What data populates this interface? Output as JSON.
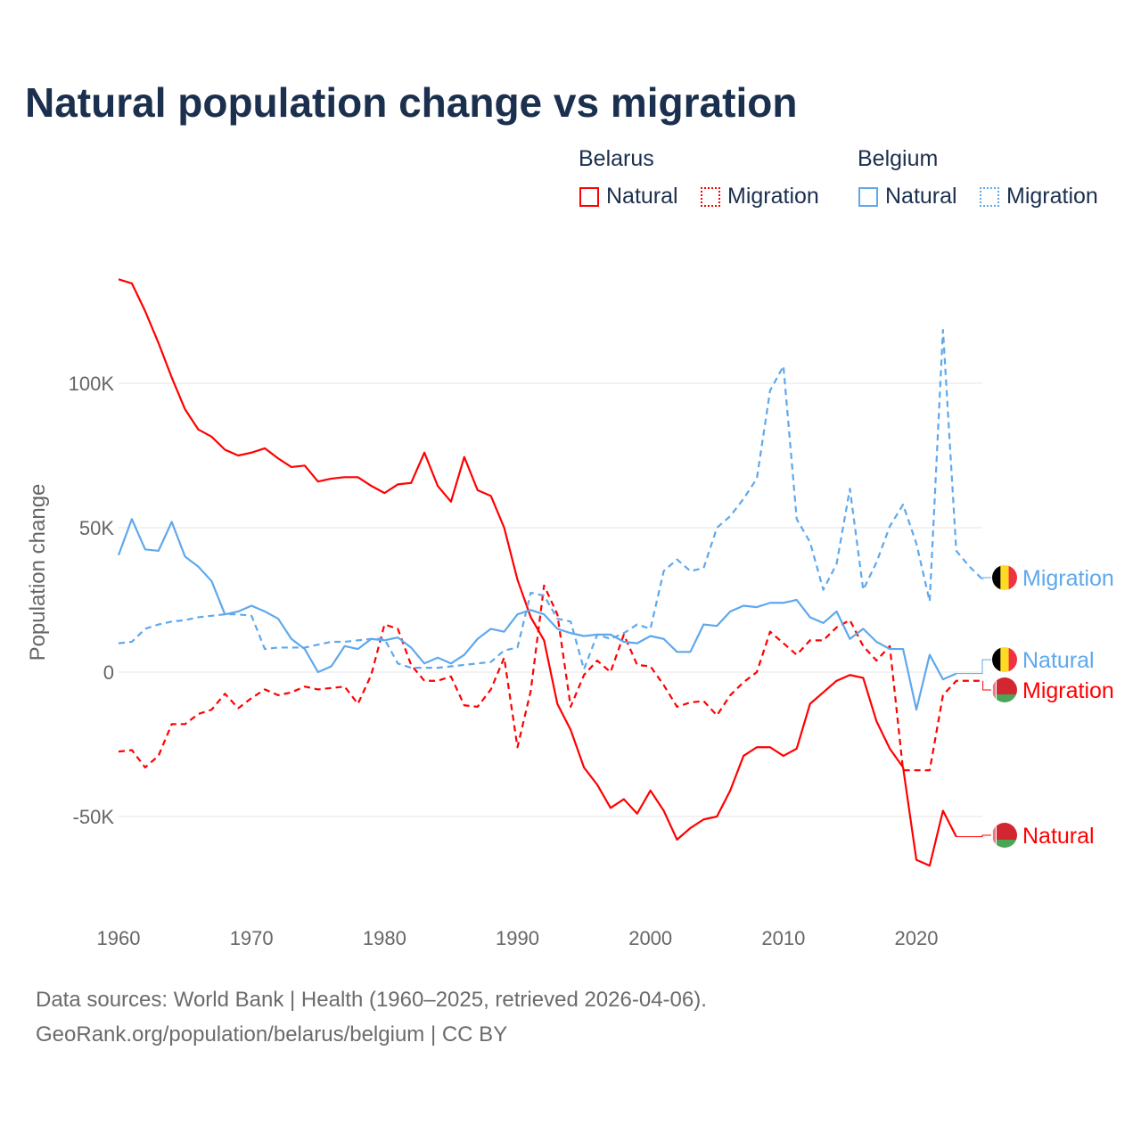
{
  "chart_data": {
    "type": "line",
    "title": "Natural population change vs migration",
    "xlabel": "",
    "ylabel": "Population change",
    "xlim": [
      1960,
      2025
    ],
    "ylim": [
      -80000,
      140000
    ],
    "grid": true,
    "x_ticks": [
      1960,
      1970,
      1980,
      1990,
      2000,
      2010,
      2020
    ],
    "x_tick_labels": [
      "1960",
      "1970",
      "1980",
      "1990",
      "2000",
      "2010",
      "2020"
    ],
    "y_ticks": [
      -50000,
      0,
      50000,
      100000
    ],
    "y_tick_labels": [
      "-50K",
      "0",
      "50K",
      "100K"
    ],
    "legend": {
      "placement": "top-right",
      "groups": [
        {
          "name": "Belarus",
          "items": [
            "Natural",
            "Migration"
          ]
        },
        {
          "name": "Belgium",
          "items": [
            "Natural",
            "Migration"
          ]
        }
      ]
    },
    "colors": {
      "Belarus": "#ff0000",
      "Belgium": "#5ea8ec"
    },
    "series": [
      {
        "country": "Belarus",
        "name": "Natural",
        "style": "solid",
        "end_label": "Natural",
        "start_year": 1960,
        "values": [
          136000,
          134600,
          125000,
          114000,
          102000,
          91000,
          84000,
          81500,
          77000,
          75000,
          76000,
          77500,
          74000,
          71000,
          71500,
          66000,
          67000,
          67500,
          67500,
          64500,
          62000,
          65000,
          65500,
          76000,
          64500,
          59000,
          74500,
          63000,
          61000,
          50000,
          32000,
          19000,
          11000,
          -11000,
          -20000,
          -33000,
          -39000,
          -47000,
          -44000,
          -49000,
          -41000,
          -48000,
          -58000,
          -54000,
          -51000,
          -50000,
          -41000,
          -29000,
          -26000,
          -26000,
          -29000,
          -26500,
          -11000,
          -7000,
          -3000,
          -1000,
          -2000,
          -17000,
          -26500,
          -33000,
          -65000,
          -67000,
          -48000,
          -57000
        ]
      },
      {
        "country": "Belarus",
        "name": "Migration",
        "style": "dashed",
        "end_label": "Migration",
        "start_year": 1960,
        "values": [
          -27500,
          -27000,
          -33000,
          -29000,
          -18000,
          -18000,
          -14500,
          -13000,
          -7500,
          -12500,
          -9000,
          -6000,
          -8000,
          -7000,
          -5000,
          -6000,
          -5500,
          -5000,
          -11000,
          -1000,
          16500,
          15000,
          2500,
          -3000,
          -3000,
          -1500,
          -11500,
          -12000,
          -6000,
          5000,
          -26000,
          -6500,
          30000,
          20000,
          -12000,
          -1000,
          4000,
          0,
          13000,
          2500,
          2000,
          -4500,
          -12000,
          -10500,
          -10000,
          -15000,
          -8000,
          -3500,
          0,
          14000,
          10000,
          6000,
          11000,
          11000,
          15500,
          18000,
          9000,
          4000,
          9000,
          -34000,
          -34000,
          -34000,
          -8000,
          -3000,
          -3000,
          -3000
        ]
      },
      {
        "country": "Belgium",
        "name": "Natural",
        "style": "solid",
        "end_label": "Natural",
        "start_year": 1960,
        "values": [
          40500,
          53000,
          42500,
          42000,
          52000,
          40000,
          36500,
          31500,
          20000,
          21000,
          23000,
          21000,
          18500,
          11500,
          8000,
          0,
          2000,
          9000,
          8000,
          11500,
          11000,
          12000,
          8500,
          3000,
          5000,
          3000,
          6000,
          11500,
          15000,
          14000,
          20000,
          21500,
          20000,
          15000,
          13500,
          12500,
          13000,
          13000,
          10500,
          10000,
          12500,
          11500,
          7000,
          7000,
          16500,
          16000,
          21000,
          23000,
          22500,
          24000,
          24000,
          25000,
          19000,
          17000,
          21000,
          11500,
          15000,
          10500,
          8000,
          8000,
          -13000,
          6000,
          -2500,
          -500
        ]
      },
      {
        "country": "Belgium",
        "name": "Migration",
        "style": "dashed",
        "end_label": "Migration",
        "start_year": 1960,
        "values": [
          10000,
          10500,
          15000,
          16500,
          17500,
          18000,
          19000,
          19500,
          20000,
          20000,
          19500,
          8000,
          8500,
          8500,
          8500,
          9500,
          10500,
          10500,
          11000,
          11500,
          11500,
          3000,
          1500,
          1500,
          1500,
          2000,
          2500,
          3000,
          3500,
          7500,
          8500,
          27500,
          26500,
          18500,
          17500,
          1000,
          13000,
          11500,
          13500,
          16500,
          15000,
          35000,
          39000,
          35000,
          36000,
          50000,
          54000,
          60000,
          67000,
          97500,
          106000,
          53000,
          45000,
          28500,
          37500,
          63500,
          28500,
          38000,
          50500,
          58000,
          44500,
          24500,
          118500,
          42000,
          36500,
          32000
        ]
      }
    ]
  },
  "footer": {
    "line1": "Data sources: World Bank | Health (1960–2025, retrieved 2026-04-06).",
    "line2": "GeoRank.org/population/belarus/belgium | CC BY"
  }
}
